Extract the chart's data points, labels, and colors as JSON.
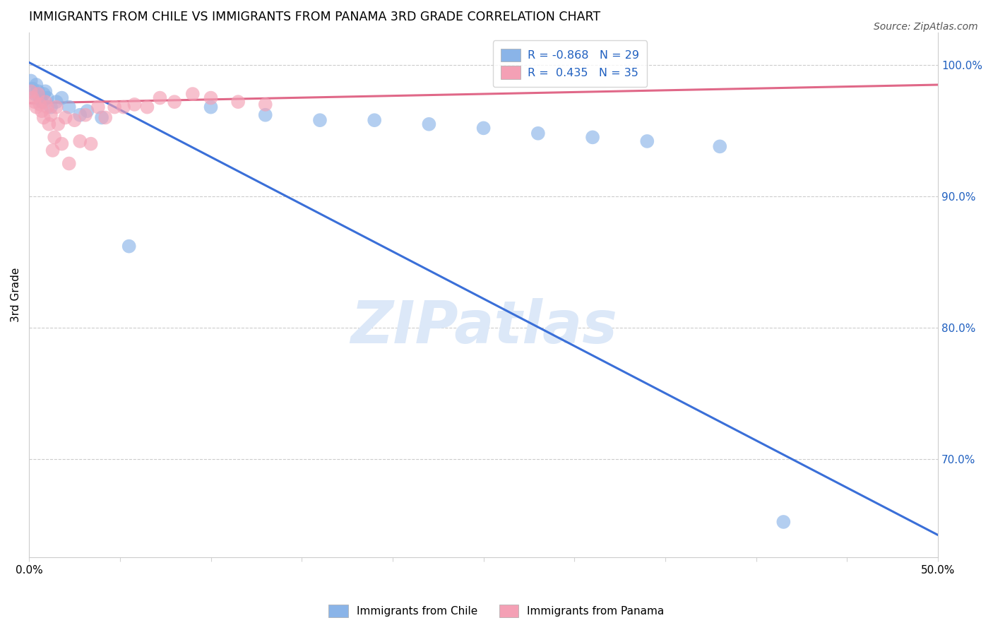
{
  "title": "IMMIGRANTS FROM CHILE VS IMMIGRANTS FROM PANAMA 3RD GRADE CORRELATION CHART",
  "source": "Source: ZipAtlas.com",
  "ylabel_left": "3rd Grade",
  "legend_label_chile": "Immigrants from Chile",
  "legend_label_panama": "Immigrants from Panama",
  "R_chile": -0.868,
  "N_chile": 29,
  "R_panama": 0.435,
  "N_panama": 35,
  "xlim": [
    0.0,
    0.5
  ],
  "ylim": [
    0.625,
    1.025
  ],
  "xticks": [
    0.0,
    0.05,
    0.1,
    0.15,
    0.2,
    0.25,
    0.3,
    0.35,
    0.4,
    0.45,
    0.5
  ],
  "yticks_right": [
    0.7,
    0.8,
    0.9,
    1.0
  ],
  "ytick_labels_right": [
    "70.0%",
    "80.0%",
    "90.0%",
    "100.0%"
  ],
  "color_chile": "#8ab4e8",
  "color_panama": "#f4a0b5",
  "color_chile_line": "#3a6fd8",
  "color_panama_line": "#e06888",
  "watermark": "ZIPatlas",
  "watermark_color": "#dce8f8",
  "chile_x": [
    0.001,
    0.002,
    0.003,
    0.004,
    0.005,
    0.006,
    0.007,
    0.008,
    0.009,
    0.01,
    0.012,
    0.015,
    0.018,
    0.022,
    0.028,
    0.032,
    0.04,
    0.055,
    0.1,
    0.13,
    0.16,
    0.19,
    0.22,
    0.25,
    0.28,
    0.31,
    0.34,
    0.38,
    0.415
  ],
  "chile_y": [
    0.988,
    0.982,
    0.978,
    0.985,
    0.98,
    0.975,
    0.972,
    0.978,
    0.98,
    0.975,
    0.968,
    0.972,
    0.975,
    0.968,
    0.962,
    0.965,
    0.96,
    0.862,
    0.968,
    0.962,
    0.958,
    0.958,
    0.955,
    0.952,
    0.948,
    0.945,
    0.942,
    0.938,
    0.652
  ],
  "panama_x": [
    0.001,
    0.002,
    0.003,
    0.004,
    0.005,
    0.006,
    0.007,
    0.008,
    0.009,
    0.01,
    0.011,
    0.012,
    0.013,
    0.014,
    0.015,
    0.016,
    0.018,
    0.02,
    0.022,
    0.025,
    0.028,
    0.031,
    0.034,
    0.038,
    0.042,
    0.047,
    0.052,
    0.058,
    0.065,
    0.072,
    0.08,
    0.09,
    0.1,
    0.115,
    0.13
  ],
  "panama_y": [
    0.98,
    0.975,
    0.972,
    0.968,
    0.978,
    0.97,
    0.965,
    0.96,
    0.972,
    0.968,
    0.955,
    0.962,
    0.935,
    0.945,
    0.968,
    0.955,
    0.94,
    0.96,
    0.925,
    0.958,
    0.942,
    0.962,
    0.94,
    0.968,
    0.96,
    0.968,
    0.968,
    0.97,
    0.968,
    0.975,
    0.972,
    0.978,
    0.975,
    0.972,
    0.97
  ],
  "chile_line_x": [
    0.0,
    0.5
  ],
  "chile_line_y": [
    1.002,
    0.642
  ],
  "panama_line_x": [
    0.0,
    0.5
  ],
  "panama_line_y": [
    0.971,
    0.985
  ]
}
